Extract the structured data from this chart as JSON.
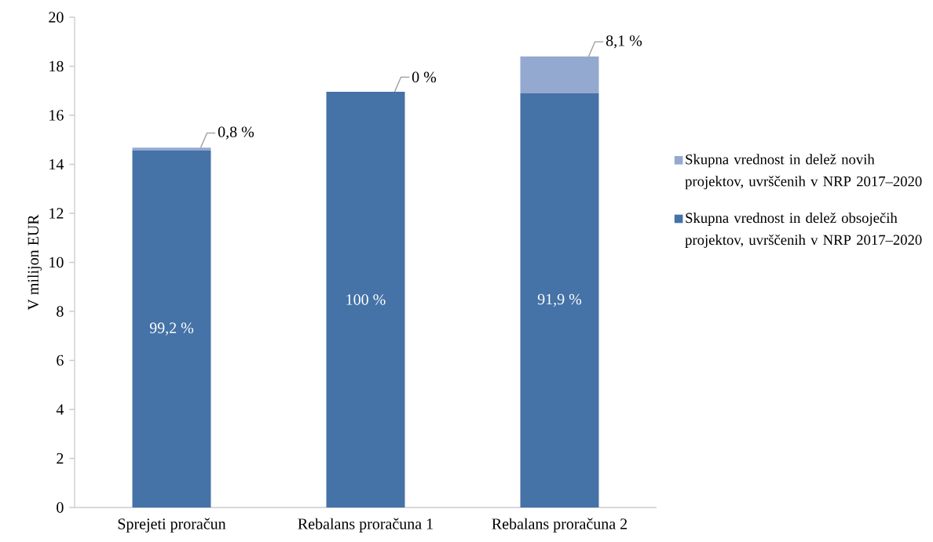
{
  "chart_data": {
    "type": "bar",
    "stacked": true,
    "categories": [
      "Sprejeti proračun",
      "Rebalans proračuna 1",
      "Rebalans proračuna 2"
    ],
    "ylabel": "V milijon EUR",
    "ylim": [
      0,
      20
    ],
    "yticks": [
      0,
      2,
      4,
      6,
      8,
      10,
      12,
      14,
      16,
      18,
      20
    ],
    "legend": "right",
    "series": [
      {
        "name": "Skupna vrednost in delež obsoječih projektov, uvrščenih v NRP 2017–2020",
        "color": "#4572a7",
        "values": [
          14.56,
          16.96,
          16.9
        ]
      },
      {
        "name": "Skupna vrednost in delež novih projektov, uvrščenih v NRP 2017–2020",
        "color": "#94a9d0",
        "values": [
          0.12,
          0,
          1.5
        ]
      }
    ],
    "annotations": [
      "99,2 %",
      "100 %",
      "91,9 %",
      "0,8 %",
      "0 %",
      "8,1 %"
    ]
  }
}
